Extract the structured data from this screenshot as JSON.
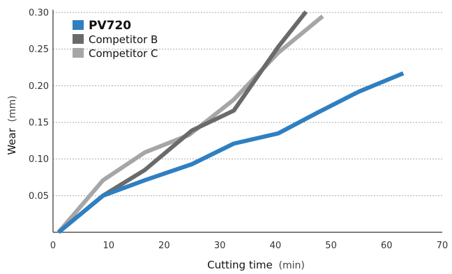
{
  "chart_data": {
    "type": "line",
    "title": "",
    "xlabel": "Cutting time",
    "xlabel_unit": "(min)",
    "ylabel": "Wear",
    "ylabel_unit": "(mm)",
    "xlim": [
      0,
      70
    ],
    "ylim": [
      0,
      0.3
    ],
    "xticks": [
      0,
      10,
      20,
      30,
      40,
      50,
      60,
      70
    ],
    "xtick_labels": [
      "0",
      "10",
      "20",
      "30",
      "40",
      "50",
      "60",
      "70"
    ],
    "yticks": [
      0.05,
      0.1,
      0.15,
      0.2,
      0.25,
      0.3
    ],
    "ytick_labels": [
      "0.05",
      "0.10",
      "0.15",
      "0.20",
      "0.25",
      "0.30"
    ],
    "grid": "horizontal dotted",
    "legend_position": "top-left",
    "series": [
      {
        "name": "PV720",
        "color": "#2f7fc1",
        "bold_label": true,
        "x": [
          1,
          9,
          16.5,
          25,
          32.5,
          40.5,
          47.5,
          55,
          63
        ],
        "y": [
          0,
          0.05,
          0.071,
          0.093,
          0.121,
          0.135,
          0.163,
          0.192,
          0.217
        ]
      },
      {
        "name": "Competitor B",
        "color": "#6a6a6a",
        "bold_label": false,
        "x": [
          1,
          9,
          16.5,
          25,
          32.5,
          40.5,
          45.5
        ],
        "y": [
          0,
          0.05,
          0.085,
          0.139,
          0.166,
          0.253,
          0.301
        ]
      },
      {
        "name": "Competitor C",
        "color": "#a6a6a6",
        "bold_label": false,
        "x": [
          1,
          9,
          16.5,
          24.5,
          32.5,
          40.5,
          48.5
        ],
        "y": [
          0,
          0.071,
          0.109,
          0.133,
          0.181,
          0.245,
          0.295
        ]
      }
    ]
  }
}
